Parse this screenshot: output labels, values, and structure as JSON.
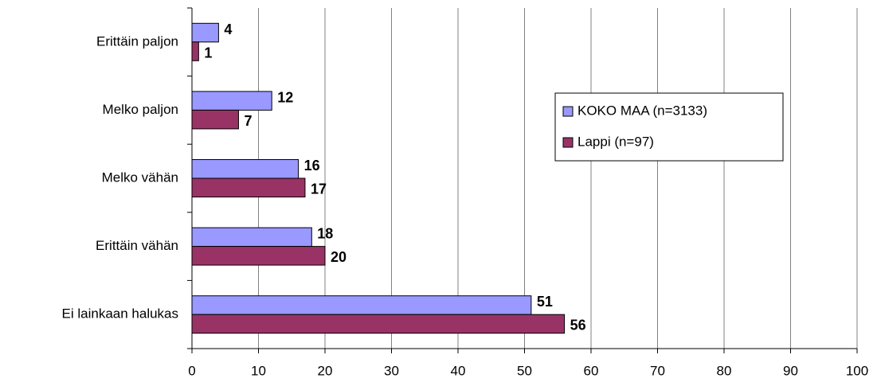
{
  "chart_data": {
    "type": "hbar",
    "categories": [
      "Erittäin paljon",
      "Melko paljon",
      "Melko vähän",
      "Erittäin vähän",
      "Ei lainkaan halukas"
    ],
    "series": [
      {
        "name": "KOKO MAA (n=3133)",
        "color": "#9999ff",
        "values": [
          4,
          12,
          16,
          18,
          51
        ]
      },
      {
        "name": "Lappi (n=97)",
        "color": "#993366",
        "values": [
          1,
          7,
          17,
          20,
          56
        ]
      }
    ],
    "xlim": [
      0,
      100
    ],
    "xticks": [
      0,
      10,
      20,
      30,
      40,
      50,
      60,
      70,
      80,
      90,
      100
    ],
    "grid": true,
    "legend": "right"
  }
}
